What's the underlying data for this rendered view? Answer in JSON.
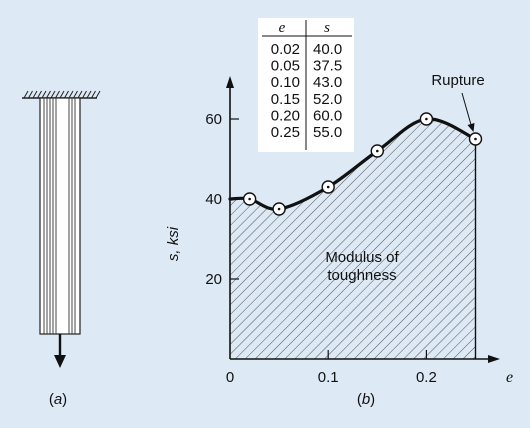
{
  "panel_a": {
    "caption_open": "(",
    "caption_letter": "a",
    "caption_close": ")"
  },
  "panel_b": {
    "caption_open": "(",
    "caption_letter": "b",
    "caption_close": ")"
  },
  "chart_data": {
    "type": "line",
    "xlabel": "e",
    "ylabel": "s, ksi",
    "xlim": [
      0,
      0.27
    ],
    "ylim": [
      0,
      70
    ],
    "x_ticks": [
      {
        "value": 0,
        "label": "0"
      },
      {
        "value": 0.1,
        "label": "0.1"
      },
      {
        "value": 0.2,
        "label": "0.2"
      }
    ],
    "y_ticks": [
      {
        "value": 20,
        "label": "20"
      },
      {
        "value": 40,
        "label": "40"
      },
      {
        "value": 60,
        "label": "60"
      }
    ],
    "points": [
      {
        "x": 0.02,
        "y": 40.0
      },
      {
        "x": 0.05,
        "y": 37.5
      },
      {
        "x": 0.1,
        "y": 43.0
      },
      {
        "x": 0.15,
        "y": 52.0
      },
      {
        "x": 0.2,
        "y": 60.0
      },
      {
        "x": 0.25,
        "y": 55.0
      }
    ],
    "table": {
      "headers": [
        "e",
        "s"
      ],
      "rows": [
        [
          "0.02",
          "40.0"
        ],
        [
          "0.05",
          "37.5"
        ],
        [
          "0.10",
          "43.0"
        ],
        [
          "0.15",
          "52.0"
        ],
        [
          "0.20",
          "60.0"
        ],
        [
          "0.25",
          "55.0"
        ]
      ]
    },
    "annotations": {
      "region_line1": "Modulus of",
      "region_line2": "toughness",
      "rupture": "Rupture"
    }
  }
}
